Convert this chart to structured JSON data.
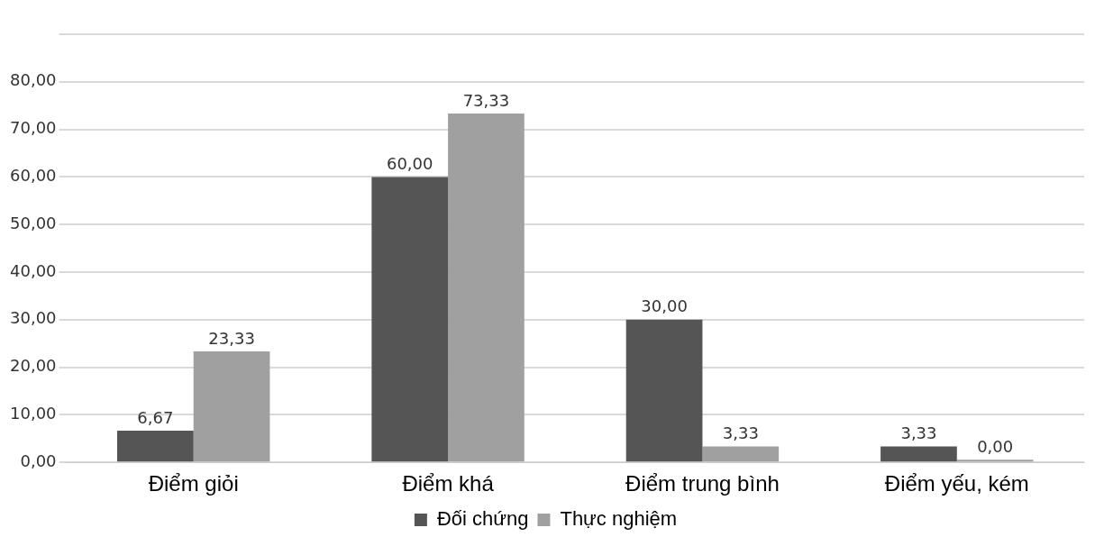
{
  "chart_data": {
    "type": "bar",
    "categories": [
      "Điểm giỏi",
      "Điểm khá",
      "Điểm trung bình",
      "Điểm yếu, kém"
    ],
    "series": [
      {
        "name": "Đối chứng",
        "color": "#555555",
        "values": [
          6.67,
          60,
          30,
          3.33
        ],
        "value_labels": [
          "6,67",
          "60,00",
          "30,00",
          "3,33"
        ]
      },
      {
        "name": "Thực nghiệm",
        "color": "#a0a0a0",
        "values": [
          23.33,
          73.33,
          3.33,
          0
        ],
        "value_labels": [
          "23,33",
          "73,33",
          "3,33",
          "0,00"
        ]
      }
    ],
    "ylim": [
      0,
      90
    ],
    "yticks": [
      {
        "value": 0,
        "label": "0,00"
      },
      {
        "value": 10,
        "label": "10,00"
      },
      {
        "value": 20,
        "label": "20,00"
      },
      {
        "value": 30,
        "label": "30,00"
      },
      {
        "value": 40,
        "label": "40,00"
      },
      {
        "value": 50,
        "label": "50,00"
      },
      {
        "value": 60,
        "label": "60,00"
      },
      {
        "value": 70,
        "label": "70,00"
      },
      {
        "value": 80,
        "label": "80,00"
      },
      {
        "value": 90,
        "label": null
      }
    ],
    "grid": "y",
    "legend": "bottom"
  }
}
